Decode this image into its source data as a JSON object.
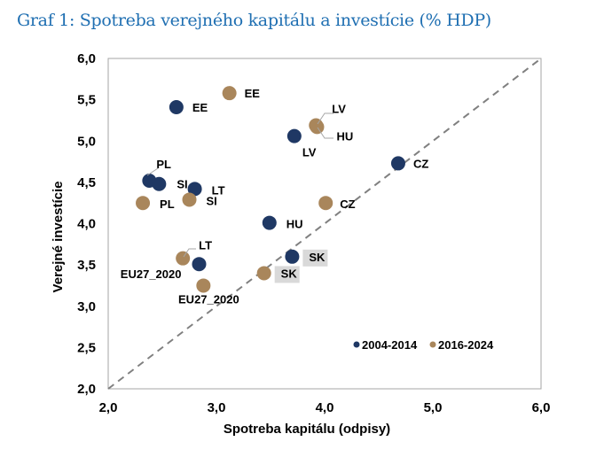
{
  "title": "Graf 1: Spotreba verejného kapitálu a investície (% HDP)",
  "chart_data": {
    "type": "scatter",
    "title": "Graf 1: Spotreba verejného kapitálu a investície (% HDP)",
    "xlabel": "Spotreba kapitálu (odpisy)",
    "ylabel": "Verejné investície",
    "xlim": [
      2.0,
      6.0
    ],
    "ylim": [
      2.0,
      6.0
    ],
    "xticks": [
      "2,0",
      "3,0",
      "4,0",
      "5,0",
      "6,0"
    ],
    "yticks": [
      "2,0",
      "2,5",
      "3,0",
      "3,5",
      "4,0",
      "4,5",
      "5,0",
      "5,5",
      "6,0"
    ],
    "grid": false,
    "reference_line": "45-degree dashed line (y = x)",
    "legend_position": "bottom-right",
    "series": [
      {
        "name": "2004-2014",
        "color": "#1f3864",
        "points": [
          {
            "label": "EE",
            "x": 2.63,
            "y": 5.41
          },
          {
            "label": "PL",
            "x": 2.38,
            "y": 4.52
          },
          {
            "label": "SI",
            "x": 2.47,
            "y": 4.48
          },
          {
            "label": "LT",
            "x": 2.8,
            "y": 4.42
          },
          {
            "label": "LV",
            "x": 3.72,
            "y": 5.06
          },
          {
            "label": "CZ",
            "x": 4.68,
            "y": 4.73
          },
          {
            "label": "HU",
            "x": 3.49,
            "y": 4.01
          },
          {
            "label": "SK",
            "x": 3.7,
            "y": 3.6
          },
          {
            "label": "EU27_2020",
            "x": 2.84,
            "y": 3.51
          }
        ]
      },
      {
        "name": "2016-2024",
        "color": "#a9865b",
        "points": [
          {
            "label": "EE",
            "x": 3.12,
            "y": 5.58
          },
          {
            "label": "PL",
            "x": 2.32,
            "y": 4.25
          },
          {
            "label": "SI",
            "x": 2.75,
            "y": 4.29
          },
          {
            "label": "LV",
            "x": 3.92,
            "y": 5.19
          },
          {
            "label": "HU",
            "x": 3.93,
            "y": 5.17
          },
          {
            "label": "CZ",
            "x": 4.01,
            "y": 4.25
          },
          {
            "label": "SK",
            "x": 3.44,
            "y": 3.4
          },
          {
            "label": "LT",
            "x": 2.69,
            "y": 3.58
          },
          {
            "label": "EU27_2020",
            "x": 2.88,
            "y": 3.25
          }
        ]
      }
    ]
  }
}
